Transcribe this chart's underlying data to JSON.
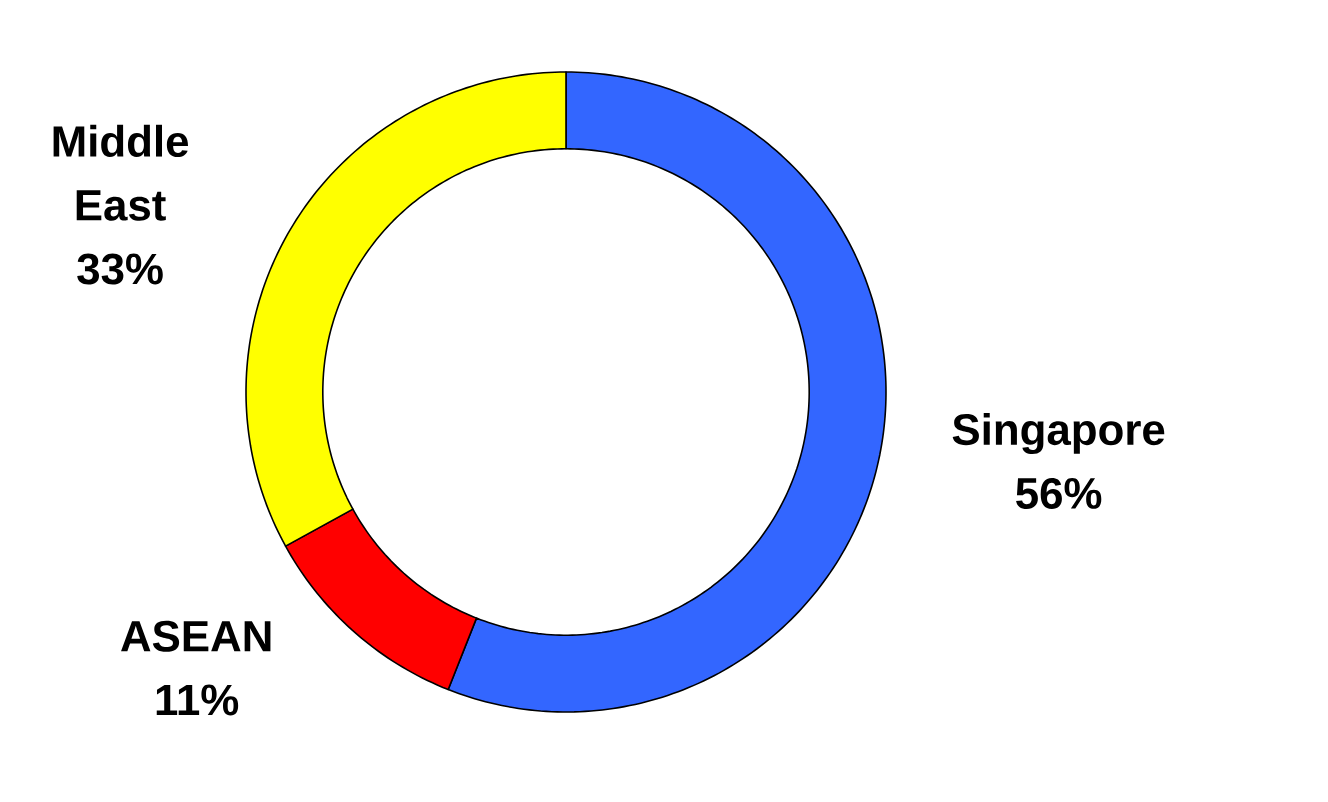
{
  "chart_data": {
    "type": "donut",
    "categories": [
      "Singapore",
      "ASEAN",
      "Middle East"
    ],
    "values": [
      56,
      11,
      33
    ],
    "value_labels": [
      "56%",
      "11%",
      "33%"
    ],
    "colors": [
      "#3366ff",
      "#ff0000",
      "#ffff00"
    ]
  }
}
